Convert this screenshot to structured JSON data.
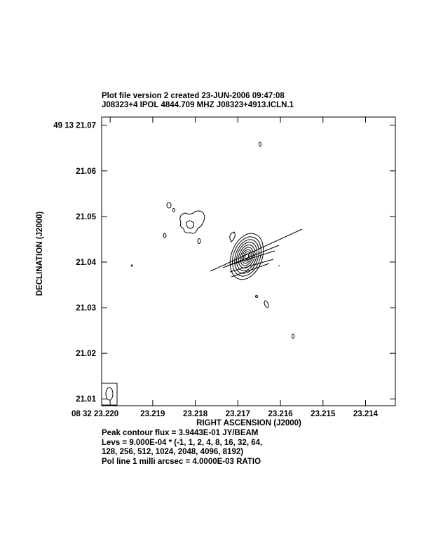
{
  "chart_data": {
    "type": "contour",
    "title": "Plot file version 2  created 23-JUN-2006 09:47:08",
    "subtitle": "J08323+4  IPOL  4844.709 MHZ  J08323+4913.ICLN.1",
    "x_label": "RIGHT ASCENSION (J2000)",
    "y_label": "DECLINATION (J2000)",
    "xlim": [
      23.2202,
      23.2133
    ],
    "ylim": [
      21.0085,
      21.0718
    ],
    "xticks": [
      {
        "value": 23.22,
        "label": "08 32 23.220"
      },
      23.219,
      23.218,
      23.217,
      23.216,
      23.215,
      23.214
    ],
    "yticks": [
      {
        "value": 21.07,
        "label": "49 13 21.07"
      },
      21.06,
      21.05,
      21.04,
      21.03,
      21.02,
      21.01
    ],
    "notes": [
      "Peak contour flux =  3.9443E-01 JY/BEAM",
      "Levs = 9.000E-04 * (-1, 1, 2, 4, 8, 16, 32, 64,",
      "128, 256, 512, 1024, 2048, 4096, 8192)",
      "Pol line 1 milli arcsec =  4.0000E-03 RATIO"
    ]
  }
}
